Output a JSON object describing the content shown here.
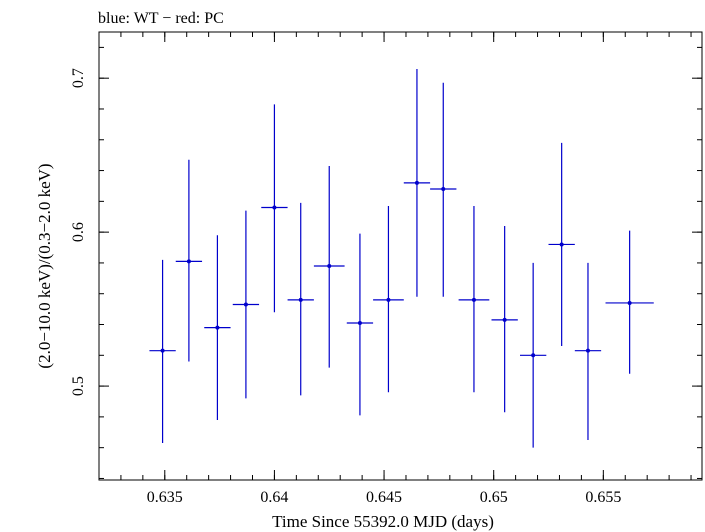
{
  "chart_data": {
    "type": "scatter",
    "title": "blue: WT − red: PC",
    "xlabel": "Time Since 55392.0 MJD (days)",
    "ylabel": "(2.0−10.0 keV)/(0.3−2.0 keV)",
    "xlim": [
      0.632,
      0.6595
    ],
    "ylim": [
      0.439,
      0.73
    ],
    "x_ticks": [
      {
        "value": 0.635,
        "label": "0.635"
      },
      {
        "value": 0.64,
        "label": "0.64"
      },
      {
        "value": 0.645,
        "label": "0.645"
      },
      {
        "value": 0.65,
        "label": "0.65"
      },
      {
        "value": 0.655,
        "label": "0.655"
      }
    ],
    "y_ticks": [
      {
        "value": 0.5,
        "label": "0.5"
      },
      {
        "value": 0.6,
        "label": "0.6"
      },
      {
        "value": 0.7,
        "label": "0.7"
      }
    ],
    "series": [
      {
        "name": "WT",
        "color": "#0000cc",
        "points": [
          {
            "x": 0.6349,
            "xerr": 0.0006,
            "y": 0.523,
            "ylo": 0.463,
            "yhi": 0.582
          },
          {
            "x": 0.6361,
            "xerr": 0.0006,
            "y": 0.581,
            "ylo": 0.516,
            "yhi": 0.647
          },
          {
            "x": 0.6374,
            "xerr": 0.0006,
            "y": 0.538,
            "ylo": 0.478,
            "yhi": 0.598
          },
          {
            "x": 0.6387,
            "xerr": 0.0006,
            "y": 0.553,
            "ylo": 0.492,
            "yhi": 0.614
          },
          {
            "x": 0.64,
            "xerr": 0.0006,
            "y": 0.616,
            "ylo": 0.548,
            "yhi": 0.683
          },
          {
            "x": 0.6412,
            "xerr": 0.0006,
            "y": 0.556,
            "ylo": 0.494,
            "yhi": 0.619
          },
          {
            "x": 0.6425,
            "xerr": 0.0007,
            "y": 0.578,
            "ylo": 0.512,
            "yhi": 0.643
          },
          {
            "x": 0.6439,
            "xerr": 0.0006,
            "y": 0.541,
            "ylo": 0.481,
            "yhi": 0.599
          },
          {
            "x": 0.6452,
            "xerr": 0.0007,
            "y": 0.556,
            "ylo": 0.496,
            "yhi": 0.617
          },
          {
            "x": 0.6465,
            "xerr": 0.0006,
            "y": 0.632,
            "ylo": 0.558,
            "yhi": 0.706
          },
          {
            "x": 0.6477,
            "xerr": 0.0006,
            "y": 0.628,
            "ylo": 0.558,
            "yhi": 0.697
          },
          {
            "x": 0.6491,
            "xerr": 0.0007,
            "y": 0.556,
            "ylo": 0.496,
            "yhi": 0.617
          },
          {
            "x": 0.6505,
            "xerr": 0.0006,
            "y": 0.543,
            "ylo": 0.483,
            "yhi": 0.604
          },
          {
            "x": 0.6518,
            "xerr": 0.0006,
            "y": 0.52,
            "ylo": 0.46,
            "yhi": 0.58
          },
          {
            "x": 0.6531,
            "xerr": 0.0006,
            "y": 0.592,
            "ylo": 0.526,
            "yhi": 0.658
          },
          {
            "x": 0.6543,
            "xerr": 0.0006,
            "y": 0.523,
            "ylo": 0.465,
            "yhi": 0.58
          },
          {
            "x": 0.6562,
            "xerr": 0.0011,
            "y": 0.554,
            "ylo": 0.508,
            "yhi": 0.601
          }
        ]
      }
    ]
  }
}
